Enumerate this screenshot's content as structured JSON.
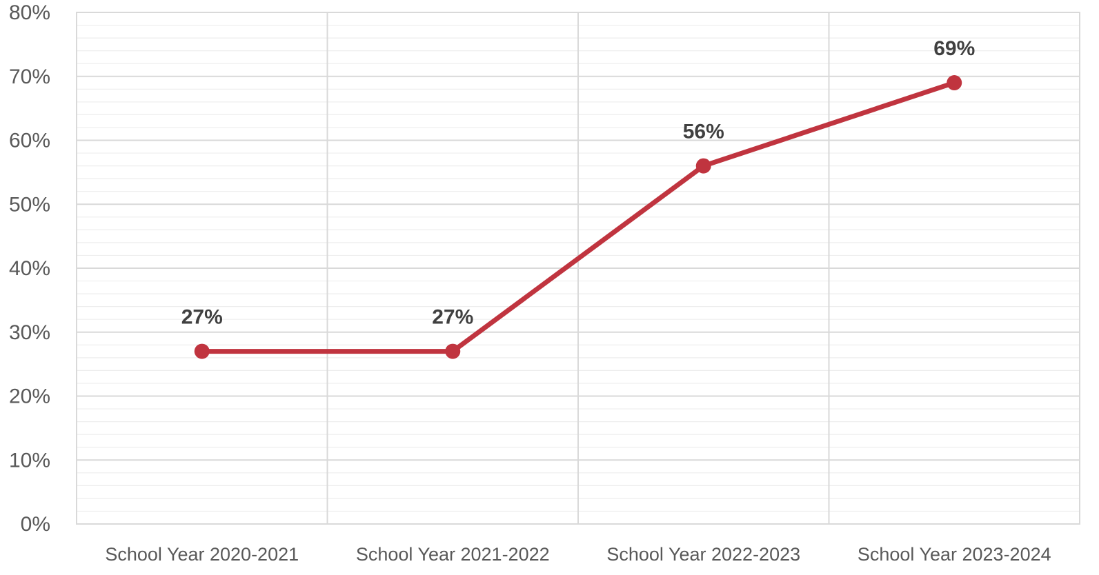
{
  "chart_data": {
    "type": "line",
    "title": "",
    "xlabel": "",
    "ylabel": "",
    "categories": [
      "School Year 2020-2021",
      "School Year 2021-2022",
      "School Year 2022-2023",
      "School Year 2023-2024"
    ],
    "series": [
      {
        "values": [
          27,
          27,
          56,
          69
        ],
        "data_labels": [
          "27%",
          "27%",
          "56%",
          "69%"
        ],
        "color": "#c0343f"
      }
    ],
    "ylim": [
      0,
      80
    ],
    "y_ticks": [
      0,
      10,
      20,
      30,
      40,
      50,
      60,
      70,
      80
    ],
    "y_tick_labels": [
      "0%",
      "10%",
      "20%",
      "30%",
      "40%",
      "50%",
      "60%",
      "70%",
      "80%"
    ],
    "grid": true,
    "minor_grid": true,
    "legend": "none"
  },
  "colors": {
    "line": "#c0343f",
    "major_grid": "#d9d9d9",
    "minor_grid": "#ededed",
    "tick_text": "#595959",
    "data_label_text": "#404040"
  }
}
